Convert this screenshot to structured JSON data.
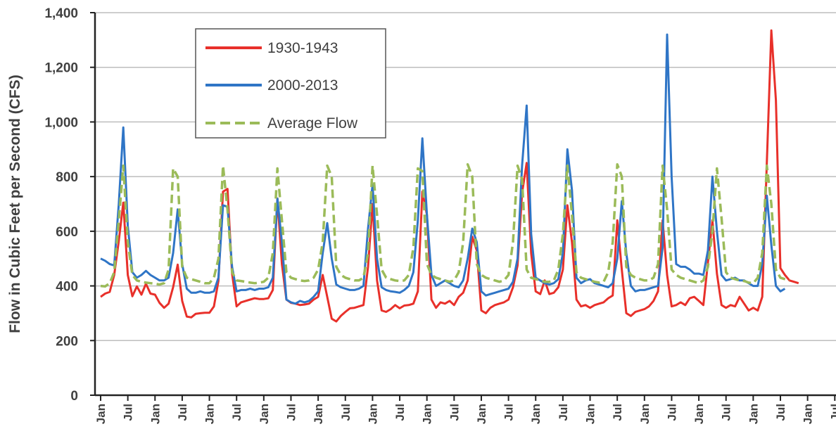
{
  "chart_data": {
    "type": "line",
    "ylabel": "Flow in Cubic Feet per Second (CFS)",
    "xlabel": "",
    "ylim": [
      0,
      1400
    ],
    "yticks": [
      0,
      200,
      400,
      600,
      800,
      1000,
      1200,
      1400
    ],
    "ytick_labels": [
      "0",
      "200",
      "400",
      "600",
      "800",
      "1,000",
      "1,200",
      "1,400"
    ],
    "grid": true,
    "legend_position": "top-left",
    "x_tick_labels": [
      "Jan",
      "Jul",
      "Jan",
      "Jul",
      "Jan",
      "Jul",
      "Jan",
      "Jul",
      "Jan",
      "Jul",
      "Jan",
      "Jul",
      "Jan",
      "Jul",
      "Jan",
      "Jul",
      "Jan",
      "Jul",
      "Jan",
      "Jul",
      "Jan",
      "Jul",
      "Jan",
      "Jul",
      "Jan",
      "Jul",
      "Jan",
      "Jul"
    ],
    "x_tick_index_step": 6,
    "series": [
      {
        "name": "1930-1943",
        "color": "#e8302a",
        "dash": false,
        "values": [
          360,
          372,
          378,
          440,
          565,
          705,
          440,
          362,
          398,
          368,
          408,
          372,
          368,
          338,
          320,
          335,
          395,
          478,
          345,
          288,
          285,
          298,
          300,
          302,
          302,
          325,
          418,
          745,
          755,
          445,
          325,
          340,
          345,
          350,
          355,
          352,
          352,
          355,
          385,
          720,
          480,
          350,
          338,
          335,
          330,
          332,
          335,
          350,
          360,
          440,
          360,
          280,
          270,
          290,
          305,
          318,
          320,
          325,
          330,
          470,
          700,
          420,
          310,
          305,
          315,
          330,
          318,
          328,
          330,
          335,
          380,
          745,
          660,
          350,
          320,
          340,
          335,
          345,
          330,
          360,
          375,
          420,
          580,
          530,
          310,
          300,
          320,
          330,
          335,
          340,
          350,
          395,
          475,
          740,
          850,
          520,
          380,
          370,
          420,
          370,
          375,
          395,
          460,
          695,
          560,
          350,
          325,
          330,
          320,
          330,
          335,
          340,
          355,
          365,
          640,
          460,
          300,
          290,
          305,
          310,
          315,
          325,
          345,
          380,
          640,
          440,
          325,
          330,
          340,
          330,
          355,
          360,
          345,
          330,
          485,
          640,
          445,
          330,
          320,
          330,
          325,
          360,
          335,
          310,
          320,
          310,
          360,
          850,
          1335,
          1080,
          465,
          440,
          420,
          415,
          410
        ]
      },
      {
        "name": "2000-2013",
        "color": "#2f75c6",
        "dash": false,
        "values": [
          500,
          492,
          480,
          475,
          700,
          980,
          620,
          450,
          430,
          440,
          455,
          440,
          430,
          420,
          420,
          430,
          520,
          680,
          480,
          390,
          375,
          375,
          380,
          375,
          375,
          380,
          430,
          695,
          690,
          470,
          380,
          385,
          385,
          390,
          385,
          390,
          390,
          395,
          430,
          720,
          560,
          350,
          340,
          335,
          345,
          340,
          345,
          360,
          380,
          520,
          630,
          500,
          405,
          395,
          390,
          385,
          385,
          390,
          400,
          610,
          770,
          500,
          395,
          385,
          380,
          378,
          375,
          385,
          400,
          450,
          640,
          940,
          660,
          440,
          400,
          410,
          420,
          410,
          400,
          395,
          420,
          500,
          610,
          560,
          380,
          365,
          370,
          375,
          380,
          385,
          390,
          415,
          500,
          840,
          1060,
          590,
          430,
          420,
          410,
          405,
          410,
          425,
          520,
          900,
          750,
          430,
          410,
          420,
          425,
          410,
          405,
          400,
          395,
          410,
          500,
          710,
          520,
          400,
          380,
          385,
          385,
          390,
          395,
          400,
          540,
          1320,
          800,
          480,
          470,
          470,
          460,
          445,
          445,
          440,
          530,
          800,
          600,
          440,
          420,
          425,
          430,
          420,
          420,
          410,
          400,
          400,
          480,
          730,
          550,
          400,
          380,
          390
        ]
      },
      {
        "name": "Average Flow",
        "color": "#9bbb59",
        "dash": true,
        "values": [
          400,
          398,
          410,
          450,
          640,
          840,
          560,
          440,
          420,
          415,
          412,
          410,
          408,
          405,
          410,
          460,
          830,
          800,
          470,
          430,
          425,
          420,
          415,
          410,
          410,
          430,
          500,
          840,
          680,
          450,
          420,
          418,
          415,
          412,
          410,
          412,
          415,
          430,
          520,
          830,
          640,
          450,
          430,
          425,
          420,
          418,
          420,
          430,
          460,
          560,
          840,
          800,
          470,
          440,
          430,
          425,
          420,
          420,
          430,
          520,
          840,
          660,
          460,
          430,
          425,
          420,
          418,
          420,
          440,
          540,
          830,
          820,
          480,
          440,
          430,
          425,
          420,
          415,
          420,
          450,
          560,
          845,
          800,
          480,
          440,
          430,
          425,
          420,
          415,
          420,
          440,
          560,
          840,
          790,
          460,
          430,
          425,
          420,
          415,
          415,
          420,
          460,
          590,
          840,
          660,
          450,
          430,
          425,
          420,
          415,
          412,
          415,
          450,
          560,
          845,
          800,
          470,
          440,
          430,
          425,
          420,
          420,
          430,
          480,
          840,
          680,
          460,
          440,
          430,
          425,
          420,
          415,
          410,
          420,
          470,
          600,
          830,
          650,
          450,
          430,
          425,
          420,
          418,
          412,
          410,
          430,
          520,
          840,
          700,
          460,
          430,
          425,
          420
        ]
      }
    ]
  }
}
